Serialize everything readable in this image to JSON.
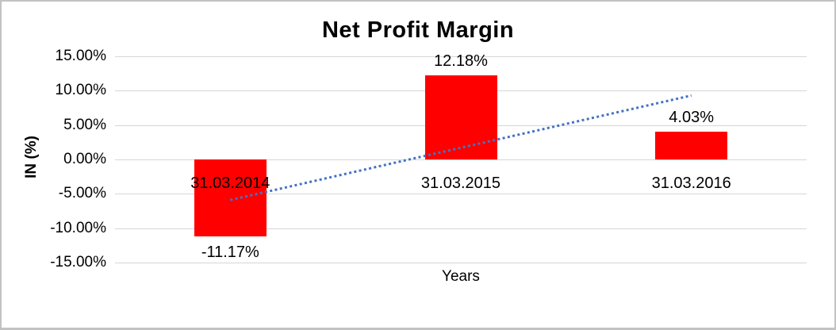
{
  "chart_data": {
    "type": "bar",
    "title": "Net Profit Margin",
    "xlabel": "Years",
    "ylabel": "IN (%)",
    "categories": [
      "31.03.2014",
      "31.03.2015",
      "31.03.2016"
    ],
    "values": [
      -11.17,
      12.18,
      4.03
    ],
    "value_labels": [
      "-11.17%",
      "12.18%",
      "4.03%"
    ],
    "y_ticks": [
      {
        "label": "15.00%",
        "value": 15
      },
      {
        "label": "10.00%",
        "value": 10
      },
      {
        "label": "5.00%",
        "value": 5
      },
      {
        "label": "0.00%",
        "value": 0
      },
      {
        "label": "-5.00%",
        "value": -5
      },
      {
        "label": "-10.00%",
        "value": -10
      },
      {
        "label": "-15.00%",
        "value": -15
      }
    ],
    "ylim": [
      -15,
      15
    ],
    "grid": true,
    "legend": "none",
    "colors": {
      "bar": "#FF0000",
      "trendline": "#4472C4",
      "gridline": "#D6D6D6",
      "text": "#000000"
    },
    "trendline": {
      "type": "linear",
      "style": "dotted",
      "start_value": -5.9,
      "end_value": 9.3
    }
  }
}
